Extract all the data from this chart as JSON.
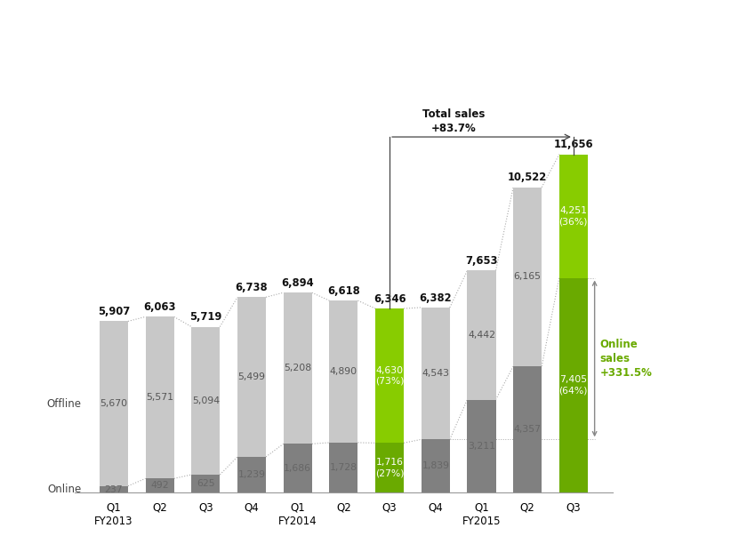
{
  "categories": [
    "Q1\nFY2013",
    "Q2",
    "Q3",
    "Q4",
    "Q1\nFY2014",
    "Q2",
    "Q3",
    "Q4",
    "Q1\nFY2015",
    "Q2",
    "Q3"
  ],
  "online_values": [
    237,
    492,
    625,
    1239,
    1686,
    1728,
    1716,
    1839,
    3211,
    4357,
    7405
  ],
  "offline_values": [
    5670,
    5571,
    5094,
    5499,
    5208,
    4890,
    4630,
    4543,
    4442,
    6165,
    4251
  ],
  "total_values": [
    5907,
    6063,
    5719,
    6738,
    6894,
    6618,
    6346,
    6382,
    7653,
    10522,
    11656
  ],
  "online_labels": [
    "237",
    "492",
    "625",
    "1,239",
    "1,686",
    "1,728",
    "1,716\n(27%)",
    "1,839",
    "3,211",
    "4,357",
    "7,405\n(64%)"
  ],
  "offline_labels": [
    "5,670",
    "5,571",
    "5,094",
    "5,499",
    "5,208",
    "4,890",
    "4,630\n(73%)",
    "4,543",
    "4,442",
    "6,165",
    "4,251\n(36%)"
  ],
  "total_labels": [
    "5,907",
    "6,063",
    "5,719",
    "6,738",
    "6,894",
    "6,618",
    "6,346",
    "6,382",
    "7,653",
    "10,522",
    "11,656"
  ],
  "highlight_indices": [
    6,
    10
  ],
  "color_online_normal": "#808080",
  "color_online_highlight": "#6aaa00",
  "color_offline_normal": "#c8c8c8",
  "color_offline_highlight": "#88cc00",
  "color_total_label": "#111111",
  "annotation_total_sales": "Total sales\n+83.7%",
  "annotation_online_sales": "Online\nsales\n+331.5%",
  "bar_width": 0.62,
  "ylim": [
    0,
    13500
  ],
  "ylabel_online": "Online",
  "ylabel_offline": "Offline",
  "dotted_color": "#aaaaaa",
  "arrow_color": "#888888",
  "online_sales_arrow_color": "#888888",
  "online_sales_text_color": "#6aaa00"
}
